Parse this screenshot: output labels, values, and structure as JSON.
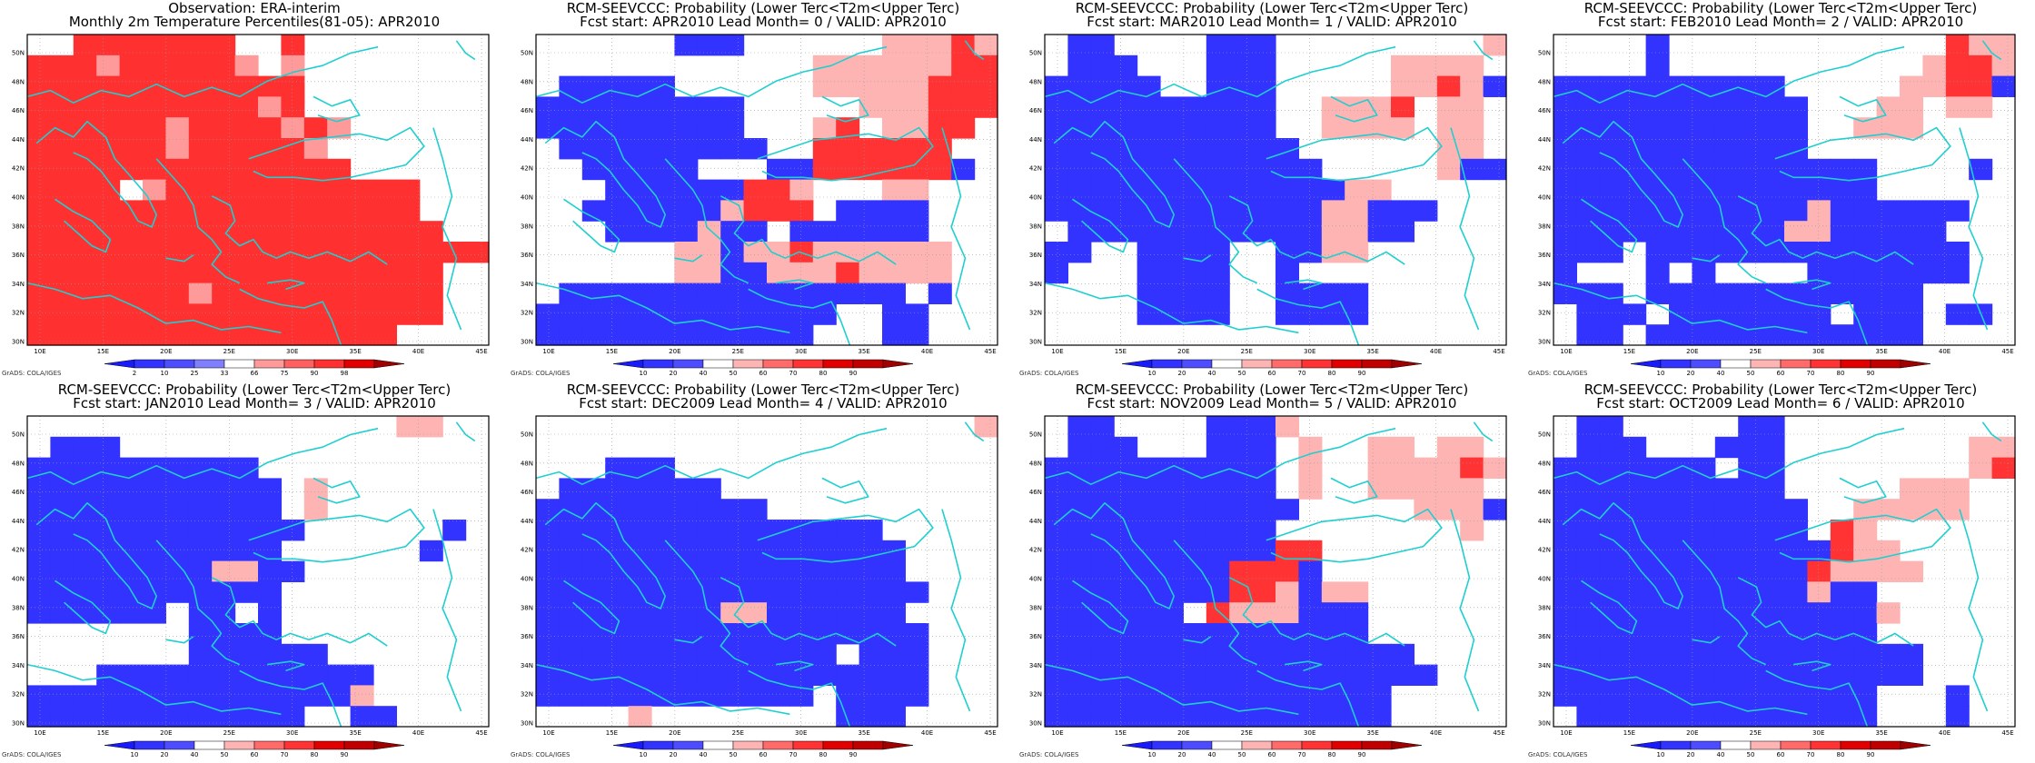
{
  "colors": {
    "white": "#ffffff",
    "coast": "#1fcfcf",
    "grid": "#9a9a9a",
    "frame": "#000000",
    "prob_scale": [
      "#1a1aff",
      "#3333ff",
      "#4d4dff",
      "#ffffff",
      "#ffb4b4",
      "#ff6a6a",
      "#ff3333",
      "#e00000",
      "#c00000",
      "#a00000"
    ],
    "obs_scale": [
      "#1a1aff",
      "#3333ff",
      "#4d4dff",
      "#8080ff",
      "#ffffff",
      "#ff9a9a",
      "#ff6060",
      "#ff3030",
      "#e00000",
      "#a00000"
    ]
  },
  "axes": {
    "lon_labels": [
      "10E",
      "15E",
      "20E",
      "25E",
      "30E",
      "35E",
      "40E",
      "45E"
    ],
    "lat_labels": [
      "30N",
      "32N",
      "34N",
      "36N",
      "38N",
      "40N",
      "42N",
      "44N",
      "46N",
      "48N",
      "50N"
    ]
  },
  "legends": {
    "obs": [
      "2",
      "10",
      "25",
      "33",
      "66",
      "75",
      "90",
      "98"
    ],
    "prob": [
      "10",
      "20",
      "40",
      "50",
      "60",
      "70",
      "80",
      "90"
    ]
  },
  "credit": "GrADS: COLA/IGES",
  "panels": [
    {
      "title1": "Observation: ERA-interim",
      "title2": "Monthly 2m Temperature Percentiles(81-05): APR2010",
      "legend": "obs",
      "cells": [
        "WWRRRRRRRWWRWWWWWWWW",
        "RRRPRRRRRPWPWWWWWWWW",
        "RRRRRRRRRRRRWWWWWWWW",
        "RRRRRRRRRRPRWWWWWWWW",
        "RRRRRRPRRRRPRPWWWWWW",
        "RRRRRRPRRRRRPWWWWWWW",
        "RRRRRRRRRRRRRRWWWWWW",
        "RRRRWPRRRRRRRRRRRWWW",
        "RRRRRRRRRRRRRRRRRWWW",
        "RRRRRRRRRRRRRRRRRRWW",
        "RRRRRRRRRRRRRRRRRRRR",
        "RRRRRRRRRRRRRRRRRRWW",
        "RRRRRRRPRRRRRRRRRRWW",
        "RRRRRRRRRRRRRRRRRRWW",
        "RRRRRRRRRRRRRRRRWWWW"
      ]
    },
    {
      "title1": "RCM-SEEVCCC: Probability (Lower Terc<T2m<Upper Terc)",
      "title2": "Fcst start: APR2010   Lead Month= 0 / VALID: APR2010",
      "legend": "prob",
      "cells": [
        "WWWWWWBBBWWWWWWPPPRP",
        "WWWWWWWWWWWWPPPPPPRR",
        "WBBBBBWWWWWWPPPPPRRR",
        "BBBBBBBBBWWWWWPPPRRR",
        "BBBBBBBBBWWWPRWPPRRW",
        "WBBBBBBBBBWWRRRRRRWW",
        "WWBBBBBWWWBBRRRRRRBW",
        "WWWBBBBBBRRPWWWPPWWW",
        "WWBBBBBBPRRRWBBBBWWW",
        "WWWBBBBPBBWBBBBBBWWW",
        "WWWWWWPPBPPRPPPPPPWW",
        "WWWWWWPPBBPPPRPPPPWW",
        "WBBBBBBBBBBBBBBBWBWW",
        "BBBBBBBBBBBBBWWBBWWW",
        "BBBBBBBBBBBBWWWBBWWW"
      ]
    },
    {
      "title1": "RCM-SEEVCCC: Probability (Lower Terc<T2m<Upper Terc)",
      "title2": "Fcst start: MAR2010   Lead Month= 1 / VALID: APR2010",
      "legend": "prob",
      "cells": [
        "WBBWWWWBBBWWWWWWWWWP",
        "WBBBWWWBBBWWWWWPPPPW",
        "BBBBBWWBBBWWWWWPPRPB",
        "BBBBBBBBBBWWPPPRWPPW",
        "BBBBBBBBBBWWPPPPWPPW",
        "BBBBBBBBBBBWWWWWWPPW",
        "BBBBBBBBBBBBWWWWWPBB",
        "BBBBBBBBBBBBBPPWWWWW",
        "BBBBBBBBBBBBPPBBBWWW",
        "WBBBBBBBBBBBPPBBWWWW",
        "BBWWBBBBWWBBPPWWWWWW",
        "BWWWBBBBWWBWWWWWWWWW",
        "WWWWBBBBWWBBBBWWWWWW",
        "WWWWBBBBWWBBBBWWWWWW",
        "WWWWWWWWWWWWWWWWWWWW"
      ]
    },
    {
      "title1": "RCM-SEEVCCC: Probability (Lower Terc<T2m<Upper Terc)",
      "title2": "Fcst start: FEB2010   Lead Month= 2 / VALID: APR2010",
      "legend": "prob",
      "cells": [
        "WWWWBWWWWWWWWWWWWRPP",
        "WWWWBWWWWWWWWWWWPRRP",
        "BBBBBBBBBBWWWWWPPRRB",
        "BBBBBBBBBBBWWWPPWPPW",
        "BBBBBBBBBBBWWPPPWWWW",
        "BBBBBBBBBBBWWWWWWWWW",
        "BBBBBBBBBBBBBBWWWWBW",
        "BBBBBBBBBBBBBBWWWWWW",
        "BBBBBBBBBBBPBBBBBBWW",
        "BBBBBBBBBBPPBBBBBWWW",
        "BBBWBBBBBBBBBBBBBBWW",
        "BWWWBWBWWWWBBBBBBBWW",
        "BBBWBBBBBBBBBBBBWWWW",
        "WBBBWBBBBBBBWBBBWBBW",
        "WBBWBBBBBBBBBBBBWWWW"
      ]
    },
    {
      "title1": "RCM-SEEVCCC: Probability (Lower Terc<T2m<Upper Terc)",
      "title2": "Fcst start: JAN2010   Lead Month= 3 / VALID: APR2010",
      "legend": "prob",
      "cells": [
        "WWWWWWWWWWWWWWWWPPWW",
        "WBBBWWWWWWWWWWWWWWWW",
        "BBBBBBBBBBWWWWWWWWWW",
        "BBBBBBBBBBBWPWWWWWWW",
        "BBBBBBBBBBBWPWWWWWWW",
        "BBBBBBBBBBBBWWWWWWBW",
        "BBBBBBBBBBBWWWWWWBWW",
        "BBBBBBBBPPBBWWWWWWWW",
        "BBBBBBBBBBBWWWWWWWWW",
        "BBBBBBWBBWBWWWWWWWWW",
        "WWWWWWWBBBBWWWWWWWWW",
        "WWWWWWWBBBBBBWWWWWWW",
        "WWWBBBBBBBBBBBBWWWWW",
        "BBBBBBBBBBBBBBPWWWWW",
        "BBBBBBBBBBBBWWBBWWWW"
      ]
    },
    {
      "title1": "RCM-SEEVCCC: Probability (Lower Terc<T2m<Upper Terc)",
      "title2": "Fcst start: DEC2009   Lead Month= 4 / VALID: APR2010",
      "legend": "prob",
      "cells": [
        "WWWWWWWWWWWWWWWWWWWP",
        "WWWWWWWWWWWWWWWWWWWW",
        "WWWBBBWWWWWWWWWWWWWW",
        "WBBBBBBBWWWWWWWWWWWW",
        "BBBBBBBBBBWWWWWWWWWW",
        "BBBBBBBBBBBBBBBWWWWW",
        "BBBBBBBBBBBBBBBBWWWW",
        "BBBBBBBBBBBBBBBBWWWW",
        "BBBBBBBBBBBBBBBBBWWW",
        "BBBBBBBBPPBBBBBBWWWW",
        "BBBBBBBBBBBBBBBBBWWW",
        "BBBBBBBBBBBBBWBBBWWW",
        "BBBBBBBBBBBBBBBBBWWW",
        "BBBBBBBBBBBBWBBBBWWW",
        "WWWWPWWWWWWWWBBBWWWW"
      ]
    },
    {
      "title1": "RCM-SEEVCCC: Probability (Lower Terc<T2m<Upper Terc)",
      "title2": "Fcst start: NOV2009   Lead Month= 5 / VALID: APR2010",
      "legend": "prob",
      "cells": [
        "WBBWWWWBBBPWWWWWWWWW",
        "WBBBWWWBBBWPWWPPWPPW",
        "BBBBBBBBBBWPWWPPPPRP",
        "BBBBBBBBBBWPWWPPPPPW",
        "BBBBBBBBBBBWWWWWPPPB",
        "BBBBBBBBBBWWWWWWWWPW",
        "BBBBBBBBBBRRWWWWWWWW",
        "BBBBBBBBRRRBWWWWWWWW",
        "BBBBBBBBRRPBPPWWWWWW",
        "BBBBBBWRPPPBBBWWWWWW",
        "BBBBBBBBBBBBBBWWWWWW",
        "BBBBBBBBBBBBBBBBWWWW",
        "BBBBBBBBBBBBBBBBBWWW",
        "BBBBBBBBBBBBBBBWWWWW",
        "BBBBBBBBBBBBBBBWWWWW"
      ]
    },
    {
      "title1": "RCM-SEEVCCC: Probability (Lower Terc<T2m<Upper Terc)",
      "title2": "Fcst start: OCT2009   Lead Month= 6 / VALID: APR2010",
      "legend": "prob",
      "cells": [
        "WBBWWWWWBBWWWWWWWWWW",
        "WBBBWWWBBBWWWWWWWWPP",
        "BBBBBBBWBBWWWWWWWWPR",
        "BBBBBBBBBBWWWWWPPPWW",
        "BBBBBBBBBBBWWPPPPPWW",
        "BBBBBBBBBBBWRPWWWWWW",
        "BBBBBBBBBBBBRPPWWWWW",
        "BBBBBBBBBBBRPPPPWWWW",
        "BBBBBBBBBBBPBBWWWWWW",
        "BBBBBBBBBBBBBBPWWWWW",
        "BBBBBBBBBBBBBBWWWWWW",
        "BBBBBBBBBBBBBBBBWWWW",
        "BBBBBBBBBBBBBBBBWWWW",
        "BBBBBBBBBBBBBBWWWBWW",
        "WBBBBBBBBBBBBBWWWBWW"
      ]
    }
  ]
}
